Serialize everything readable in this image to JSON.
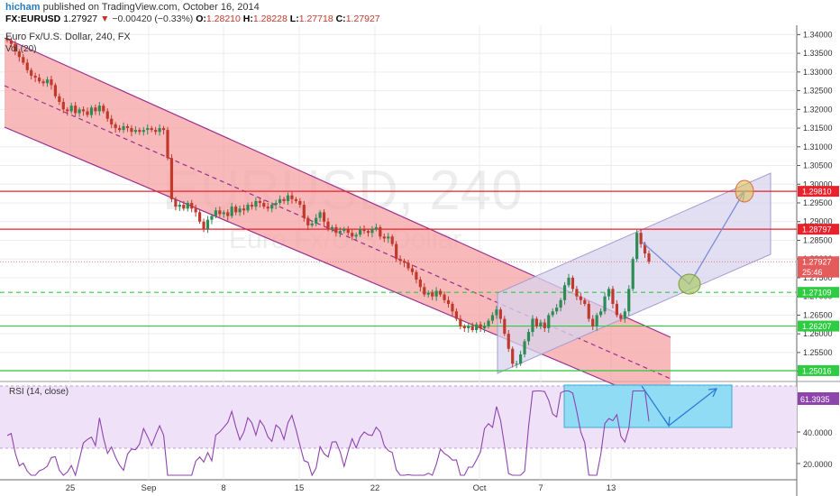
{
  "header": {
    "author": "hicham",
    "published": "published on TradingView.com, October 16, 2014",
    "symbol": "FX:EURUSD",
    "last": "1.27927",
    "change": "−0.00420 (−0.33%)",
    "o_label": "O:",
    "o": "1.28210",
    "h_label": "H:",
    "h": "1.28228",
    "l_label": "L:",
    "l": "1.27718",
    "c_label": "C:",
    "c": "1.27927"
  },
  "main": {
    "title": "Euro Fx/U.S. Dollar, 240, FX",
    "vol_label": "Vol (20)",
    "watermark_1": "EURUSD, 240",
    "watermark_2": "Euro Fx/U.S. Dollar"
  },
  "rsi": {
    "label": "RSI (14, close)",
    "value_badge": "61.3935",
    "ticks": [
      "40.0000",
      "20.0000"
    ]
  },
  "price_axis": {
    "ticks": [
      "1.34000",
      "1.33500",
      "1.33000",
      "1.32500",
      "1.32000",
      "1.31500",
      "1.31000",
      "1.30500",
      "1.30000",
      "1.29500",
      "1.29000",
      "1.28500",
      "1.28000",
      "1.27500",
      "1.27000",
      "1.26500",
      "1.26000",
      "1.25500",
      "1.25000"
    ],
    "badges": [
      {
        "label": "1.29810",
        "value": 1.2981,
        "color": "#e8212b"
      },
      {
        "label": "1.28797",
        "value": 1.28797,
        "color": "#e8212b"
      },
      {
        "label": "1.27927",
        "value": 1.27927,
        "color": "#e45b5b"
      },
      {
        "label": "25:46",
        "value": 1.2765,
        "color": "#e45b5b"
      },
      {
        "label": "1.27109",
        "value": 1.27109,
        "color": "#2ecc40"
      },
      {
        "label": "1.26207",
        "value": 1.26207,
        "color": "#2ecc40"
      },
      {
        "label": "1.25016",
        "value": 1.25016,
        "color": "#2ecc40"
      }
    ]
  },
  "time_axis": {
    "labels": [
      "25",
      "Sep",
      "8",
      "15",
      "22",
      "Oct",
      "7",
      "13"
    ]
  },
  "levels": [
    {
      "value": 1.2981,
      "color": "#e8212b",
      "style": "solid"
    },
    {
      "value": 1.28797,
      "color": "#e8212b",
      "style": "solid"
    },
    {
      "value": 1.27109,
      "color": "#2ecc40",
      "style": "dashed"
    },
    {
      "value": 1.26207,
      "color": "#2ecc40",
      "style": "solid"
    },
    {
      "value": 1.25016,
      "color": "#2ecc40",
      "style": "solid"
    }
  ],
  "colors": {
    "up_candle": "#2e8b57",
    "down_candle": "#c0392b",
    "channel_fill": "#f4a1a1",
    "channel_line": "#9b2e8f",
    "up_channel_fill": "#d9d4ee",
    "up_channel_line": "#a59bd3",
    "rsi_line": "#8e44ad",
    "rsi_box": "#7fdbf5",
    "rsi_band": "#efe2f8"
  },
  "chart_data": {
    "type": "candlestick",
    "symbol": "EURUSD",
    "interval": "240",
    "ylim": [
      1.2475,
      1.3425
    ],
    "last_price": 1.27927,
    "horizontal_levels": [
      1.2981,
      1.28797,
      1.27109,
      1.26207,
      1.25016
    ],
    "close_path": [
      1.3385,
      1.3375,
      1.3355,
      1.334,
      1.3325,
      1.3305,
      1.329,
      1.3285,
      1.3275,
      1.327,
      1.328,
      1.3265,
      1.3235,
      1.322,
      1.32,
      1.3195,
      1.321,
      1.319,
      1.32,
      1.3195,
      1.3185,
      1.3205,
      1.3195,
      1.321,
      1.3195,
      1.3175,
      1.316,
      1.315,
      1.3145,
      1.3155,
      1.315,
      1.314,
      1.3145,
      1.314,
      1.3145,
      1.315,
      1.3145,
      1.314,
      1.315,
      1.3145,
      1.307,
      1.296,
      1.294,
      1.2945,
      1.2935,
      1.295,
      1.2935,
      1.2925,
      1.29,
      1.288,
      1.2905,
      1.2915,
      1.293,
      1.292,
      1.2925,
      1.2915,
      1.294,
      1.2925,
      1.2935,
      1.293,
      1.2945,
      1.294,
      1.2955,
      1.295,
      1.294,
      1.2935,
      1.2945,
      1.295,
      1.296,
      1.2955,
      1.297,
      1.296,
      1.2955,
      1.2945,
      1.291,
      1.289,
      1.2895,
      1.291,
      1.2925,
      1.29,
      1.288,
      1.2885,
      1.287,
      1.2875,
      1.288,
      1.287,
      1.286,
      1.2865,
      1.288,
      1.2875,
      1.287,
      1.288,
      1.2885,
      1.286,
      1.2855,
      1.286,
      1.284,
      1.28,
      1.2795,
      1.279,
      1.2775,
      1.2765,
      1.2745,
      1.2725,
      1.2705,
      1.271,
      1.27,
      1.2715,
      1.2705,
      1.269,
      1.268,
      1.266,
      1.264,
      1.262,
      1.2615,
      1.262,
      1.261,
      1.2625,
      1.2615,
      1.262,
      1.2635,
      1.265,
      1.2665,
      1.264,
      1.26,
      1.256,
      1.252,
      1.252,
      1.2545,
      1.258,
      1.2605,
      1.264,
      1.262,
      1.263,
      1.2615,
      1.265,
      1.266,
      1.267,
      1.269,
      1.273,
      1.275,
      1.272,
      1.27,
      1.269,
      1.268,
      1.264,
      1.262,
      1.265,
      1.266,
      1.27,
      1.272,
      1.268,
      1.265,
      1.264,
      1.266,
      1.272,
      1.28,
      1.287,
      1.284,
      1.2815,
      1.27927
    ],
    "rsi": {
      "period": 14,
      "ylim": [
        10,
        90
      ],
      "levels": [
        70,
        30
      ],
      "current": 61.3935
    },
    "annotations": [
      "descending channel",
      "ascending channel",
      "projected path to 1.2981 via 1.2711"
    ]
  }
}
